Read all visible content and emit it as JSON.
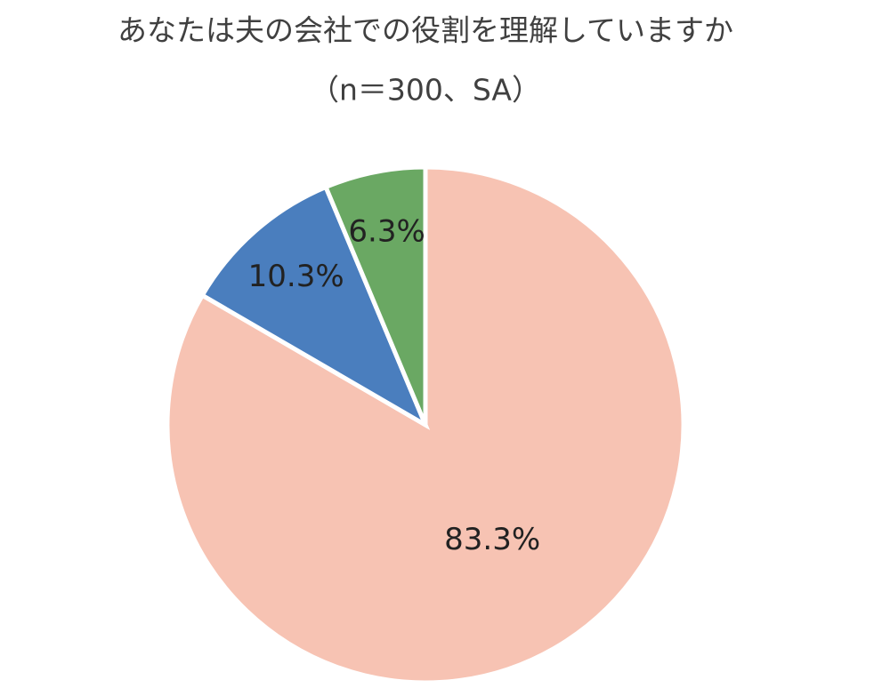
{
  "chart_data": {
    "type": "pie",
    "title": "あなたは夫の会社での役割を理解していますか",
    "subtitle": "（n＝300、SA）",
    "values": [
      83.3,
      10.3,
      6.3
    ],
    "value_labels": [
      "83.3%",
      "10.3%",
      "6.3%"
    ],
    "colors": [
      "#f7c3b3",
      "#4a7ebe",
      "#6aa863"
    ]
  }
}
